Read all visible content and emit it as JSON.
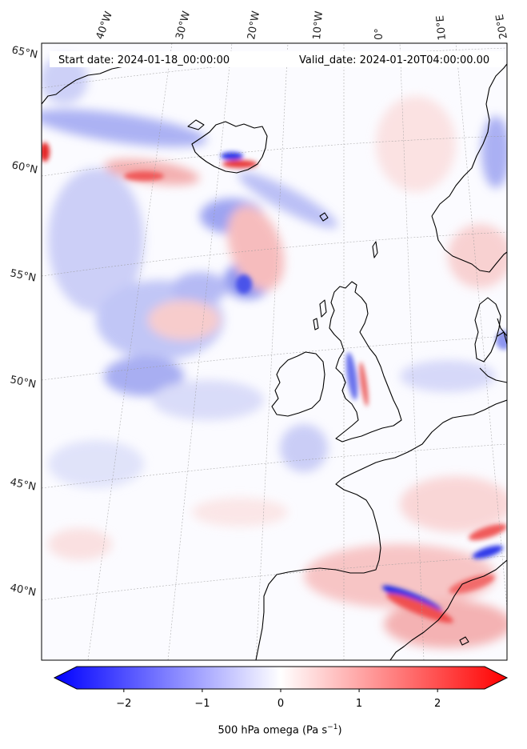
{
  "start_date": "Start date: 2024-01-18_00:00:00",
  "valid_date": "Valid_date: 2024-01-20T04:00:00.00",
  "lon_labels": [
    "40°W",
    "30°W",
    "20°W",
    "10°W",
    "0°",
    "10°E",
    "20°E"
  ],
  "lat_labels": [
    "65°N",
    "60°N",
    "55°N",
    "50°N",
    "45°N",
    "40°N"
  ],
  "colorbar": {
    "label_main": "500 hPa omega (Pa s",
    "label_exp": "−1",
    "label_close": ")",
    "min": -2.6,
    "max": 2.6,
    "ticks": [
      -2,
      -1,
      0,
      1,
      2
    ],
    "tick_labels": [
      "−2",
      "−1",
      "0",
      "1",
      "2"
    ],
    "colormap": "bwr",
    "extend": "both"
  },
  "colors": {
    "negative": "#0000ff",
    "neutral": "#ffffff",
    "positive": "#ff0000",
    "coastline": "#000000"
  }
}
